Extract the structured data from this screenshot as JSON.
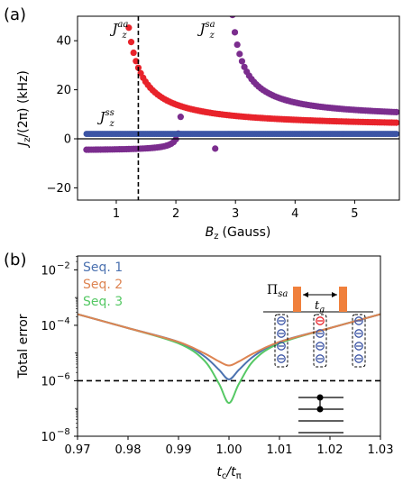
{
  "chart_data": [
    {
      "panel_label": "(a)",
      "type": "scatter",
      "xlabel_main": "B",
      "xlabel_sub": "z",
      "xlabel_unit": "(Gauss)",
      "ylabel_main": "J",
      "ylabel_sub": "z",
      "ylabel_unit": "/(2π) (kHz)",
      "xlim": [
        0.35,
        5.75
      ],
      "ylim": [
        -25,
        50
      ],
      "xticks": [
        "1",
        "2",
        "3",
        "4",
        "5"
      ],
      "yticks": [
        "−20",
        "0",
        "20",
        "40"
      ],
      "xtick_values": [
        1,
        2,
        3,
        4,
        5
      ],
      "ytick_values": [
        -20,
        0,
        20,
        40
      ],
      "vline_x": 1.37,
      "colors": {
        "aa": "#e8232b",
        "sa": "#7b2d8e",
        "ss": "#3c55a5"
      },
      "annotations": [
        {
          "name": "aa",
          "main": "J",
          "sub": "z",
          "sup": "aa",
          "x": 0.93,
          "y": 43
        },
        {
          "name": "sa",
          "main": "J",
          "sub": "z",
          "sup": "sa",
          "x": 2.4,
          "y": 43
        },
        {
          "name": "ss",
          "main": "J",
          "sub": "z",
          "sup": "ss",
          "x": 0.72,
          "y": 7
        }
      ],
      "series": [
        {
          "key": "aa",
          "type": "curve",
          "x_start": 1.17,
          "x_end": 5.7,
          "A": 9.8,
          "x0": 0.97,
          "C": 4.5
        },
        {
          "key": "sa",
          "type": "curve",
          "x_start": 2.95,
          "x_end": 5.7,
          "A": 8.5,
          "x0": 2.75,
          "C": 8.0
        },
        {
          "key": "sa",
          "type": "curve",
          "x_start": 0.5,
          "x_end": 2.08,
          "A": -0.55,
          "x0": 2.12,
          "C": -4.8
        },
        {
          "key": "sa",
          "type": "point",
          "x": 2.66,
          "y": -4
        },
        {
          "key": "ss",
          "type": "line",
          "x_start": 0.5,
          "x_end": 5.7,
          "y": 2
        }
      ]
    },
    {
      "panel_label": "(b)",
      "type": "line",
      "xlabel_main": "t",
      "xlabel_sub": "c",
      "xlabel_mid": "/t",
      "xlabel_sub2": "π",
      "ylabel": "Total error",
      "yscale": "log",
      "xlim": [
        0.97,
        1.03
      ],
      "ylim_exp": [
        -8,
        -1.5
      ],
      "xticks": [
        "0.97",
        "0.98",
        "0.99",
        "1.00",
        "1.01",
        "1.02",
        "1.03"
      ],
      "xtick_values": [
        0.97,
        0.98,
        0.99,
        1.0,
        1.01,
        1.02,
        1.03
      ],
      "ytick_exps": [
        -8,
        -6,
        -4,
        -2
      ],
      "threshold_exp": -6,
      "series": [
        {
          "name": "Seq. 1",
          "color": "#4c72b0",
          "x": [
            0.97,
            0.98,
            0.99,
            0.995,
            0.998,
            1.0,
            1.002,
            1.005,
            1.01,
            1.02,
            1.03
          ],
          "y_exp": [
            -3.6,
            -4.1,
            -4.6,
            -5.1,
            -5.6,
            -5.95,
            -5.6,
            -5.1,
            -4.6,
            -4.1,
            -3.6
          ]
        },
        {
          "name": "Seq. 2",
          "color": "#dd8452",
          "x": [
            0.97,
            0.98,
            0.99,
            0.995,
            0.998,
            1.0,
            1.002,
            1.005,
            1.01,
            1.02,
            1.03
          ],
          "y_exp": [
            -3.6,
            -4.1,
            -4.6,
            -5.0,
            -5.3,
            -5.45,
            -5.3,
            -5.0,
            -4.6,
            -4.1,
            -3.6
          ]
        },
        {
          "name": "Seq. 3",
          "color": "#55c864",
          "x": [
            0.97,
            0.98,
            0.99,
            0.995,
            0.998,
            1.0,
            1.002,
            1.005,
            1.01,
            1.02,
            1.03
          ],
          "y_exp": [
            -3.6,
            -4.1,
            -4.65,
            -5.25,
            -6.1,
            -6.8,
            -6.1,
            -5.25,
            -4.65,
            -4.1,
            -3.6
          ]
        }
      ],
      "inset": {
        "pulse_label_main": "Π",
        "pulse_label_sub": "sa",
        "gap_label_main": "t",
        "gap_label_sub": "g",
        "pulse_color": "#f0803c"
      }
    }
  ]
}
